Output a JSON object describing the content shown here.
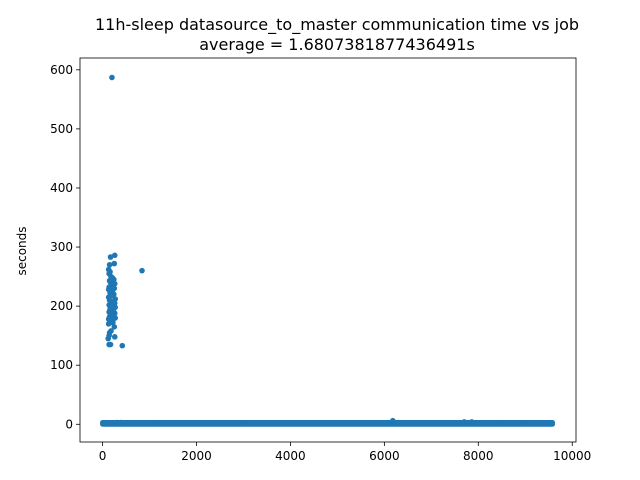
{
  "chart_data": {
    "type": "scatter",
    "title": "11h-sleep datasource_to_master communication time vs job",
    "subtitle": "average = 1.6807381877436491s",
    "xlabel": "",
    "ylabel": "seconds",
    "xlim": [
      -480,
      10080
    ],
    "ylim": [
      -30,
      620
    ],
    "xticks": [
      0,
      2000,
      4000,
      6000,
      8000,
      10000
    ],
    "yticks": [
      0,
      100,
      200,
      300,
      400,
      500,
      600
    ],
    "grid": false,
    "legend": "none",
    "marker_color": "#1f77b4",
    "baseline_band": {
      "x_range": [
        0,
        9580
      ],
      "y_range": [
        0,
        3
      ]
    },
    "points": [
      [
        200,
        587
      ],
      [
        840,
        260
      ],
      [
        260,
        286
      ],
      [
        170,
        283
      ],
      [
        250,
        272
      ],
      [
        150,
        270
      ],
      [
        130,
        262
      ],
      [
        160,
        258
      ],
      [
        140,
        255
      ],
      [
        180,
        250
      ],
      [
        210,
        248
      ],
      [
        240,
        245
      ],
      [
        150,
        243
      ],
      [
        170,
        240
      ],
      [
        230,
        240
      ],
      [
        190,
        238
      ],
      [
        260,
        238
      ],
      [
        200,
        235
      ],
      [
        140,
        232
      ],
      [
        220,
        232
      ],
      [
        250,
        230
      ],
      [
        130,
        228
      ],
      [
        180,
        228
      ],
      [
        210,
        225
      ],
      [
        160,
        222
      ],
      [
        240,
        220
      ],
      [
        190,
        218
      ],
      [
        130,
        215
      ],
      [
        270,
        212
      ],
      [
        150,
        210
      ],
      [
        200,
        208
      ],
      [
        230,
        205
      ],
      [
        260,
        205
      ],
      [
        140,
        202
      ],
      [
        180,
        200
      ],
      [
        210,
        200
      ],
      [
        250,
        198
      ],
      [
        270,
        198
      ],
      [
        160,
        195
      ],
      [
        190,
        195
      ],
      [
        230,
        192
      ],
      [
        140,
        190
      ],
      [
        210,
        190
      ],
      [
        260,
        188
      ],
      [
        180,
        185
      ],
      [
        240,
        185
      ],
      [
        150,
        182
      ],
      [
        200,
        180
      ],
      [
        270,
        180
      ],
      [
        130,
        178
      ],
      [
        230,
        178
      ],
      [
        170,
        175
      ],
      [
        220,
        172
      ],
      [
        130,
        170
      ],
      [
        250,
        165
      ],
      [
        180,
        158
      ],
      [
        150,
        155
      ],
      [
        140,
        150
      ],
      [
        260,
        148
      ],
      [
        120,
        145
      ],
      [
        140,
        135
      ],
      [
        170,
        135
      ],
      [
        420,
        133
      ],
      [
        6180,
        6
      ],
      [
        7700,
        4
      ],
      [
        7860,
        4
      ],
      [
        300,
        3
      ],
      [
        400,
        3
      ],
      [
        500,
        2
      ],
      [
        6300,
        3
      ],
      [
        9000,
        2
      ],
      [
        8400,
        2
      ],
      [
        1200,
        2
      ],
      [
        3000,
        2
      ],
      [
        5000,
        2
      ]
    ]
  }
}
